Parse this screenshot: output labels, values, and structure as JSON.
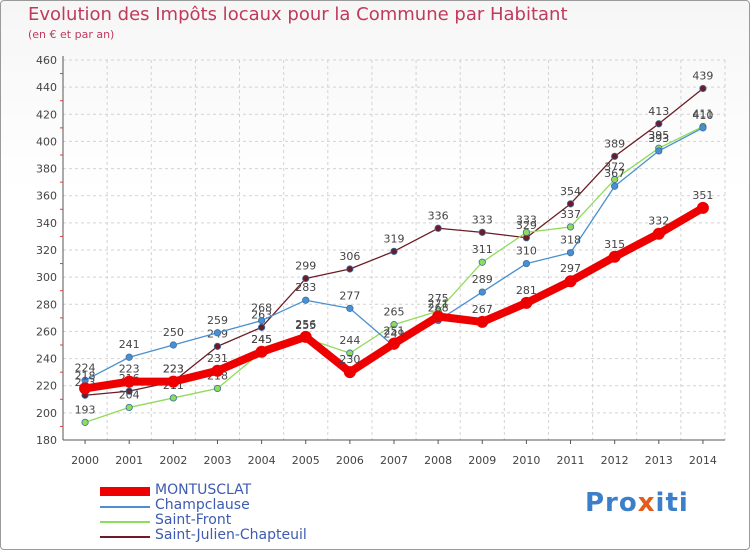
{
  "title": "Evolution des Impôts locaux pour la Commune par Habitant",
  "subtitle": "(en € et par an)",
  "logo": {
    "text_pre": "Pro",
    "text_x": "x",
    "text_post": "iti"
  },
  "chart_data": {
    "type": "line",
    "title": "Evolution des Impôts locaux pour la Commune par Habitant",
    "ylabel": "(en € et par an)",
    "xlabel": "",
    "x": [
      2000,
      2001,
      2002,
      2003,
      2004,
      2005,
      2006,
      2007,
      2008,
      2009,
      2010,
      2011,
      2012,
      2013,
      2014
    ],
    "ylim": [
      180,
      460
    ],
    "yticks": [
      180,
      200,
      220,
      240,
      260,
      280,
      300,
      320,
      340,
      360,
      380,
      400,
      420,
      440,
      460
    ],
    "grid": true,
    "series": [
      {
        "name": "Saint-Julien-Chapteuil",
        "color": "#6b1c24",
        "values": [
          213,
          216,
          223,
          249,
          263,
          299,
          306,
          319,
          336,
          333,
          329,
          354,
          389,
          413,
          439
        ]
      },
      {
        "name": "Saint-Front",
        "color": "#8fdc5a",
        "values": [
          193,
          204,
          211,
          218,
          245,
          255,
          244,
          265,
          275,
          311,
          333,
          337,
          372,
          395,
          411
        ]
      },
      {
        "name": "Champclause",
        "color": "#4a90d0",
        "values": [
          224,
          241,
          250,
          259,
          268,
          283,
          277,
          249,
          268,
          289,
          310,
          318,
          367,
          393,
          410
        ]
      },
      {
        "name": "MONTUSCLAT",
        "color": "#ee0000",
        "values": [
          218,
          223,
          223,
          231,
          245,
          256,
          230,
          251,
          271,
          267,
          281,
          297,
          315,
          332,
          351
        ]
      }
    ]
  }
}
